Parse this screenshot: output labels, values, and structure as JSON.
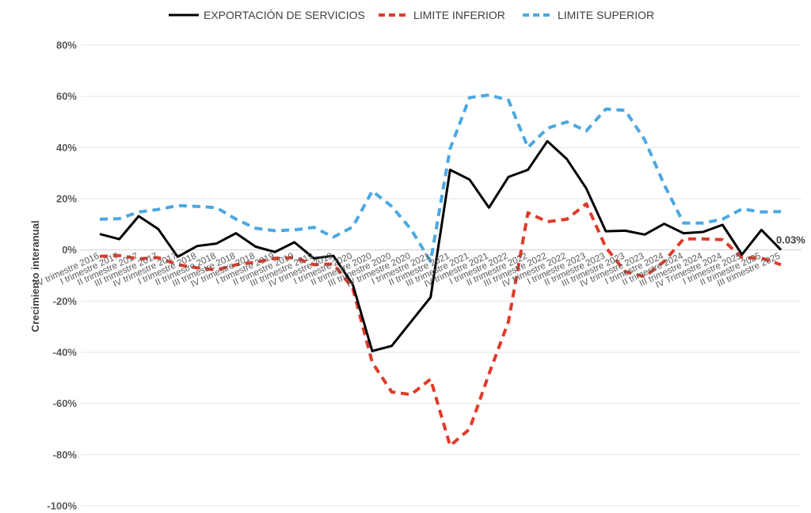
{
  "chart_data": {
    "type": "line",
    "title": "",
    "xlabel": "",
    "ylabel": "Crecimiento interanual",
    "ylim": [
      -100,
      80
    ],
    "y_ticks": [
      {
        "value": 80,
        "label": "80%"
      },
      {
        "value": 60,
        "label": "60%"
      },
      {
        "value": 40,
        "label": "40%"
      },
      {
        "value": 20,
        "label": "20%"
      },
      {
        "value": 0,
        "label": "0%"
      },
      {
        "value": -20,
        "label": "-20%"
      },
      {
        "value": -40,
        "label": "-40%"
      },
      {
        "value": -60,
        "label": "-60%"
      },
      {
        "value": -80,
        "label": "-80%"
      },
      {
        "value": -100,
        "label": "-100%"
      }
    ],
    "grid": true,
    "legend_position": "top",
    "categories": [
      "IV trimestre 2016",
      "I trimestre 2017",
      "II trimestre 2017",
      "III trimestre 2017",
      "IV trimestre 2017",
      "I trimestre 2018",
      "II trimestre 2018",
      "III trimestre 2018",
      "IV trimestre 2018",
      "I trimestre 2019",
      "II trimestre 2019",
      "III trimestre 2019",
      "IV trimestre 2019",
      "I trimestre 2020",
      "II trimestre 2020",
      "III trimestre 2020",
      "IV trimestre 2020",
      "I trimestre 2021",
      "II trimestre 2021",
      "III trimestre 2021",
      "IV trimestre 2021",
      "I trimestre 2022",
      "II trimestre 2022",
      "III trimestre 2022",
      "IV trimestre 2022",
      "I trimestre 2023",
      "II trimestre 2023",
      "III trimestre 2023",
      "IV trimestre 2023",
      "I trimestre 2024",
      "II trimestre 2024",
      "III trimestre 2024",
      "IV Trimestre 2024",
      "I trimestre 2025",
      "II trimestre 2025",
      "III trimestre 2025"
    ],
    "series": [
      {
        "name": "EXPORTACIÓN DE SERVICIOS",
        "color": "#000000",
        "dash": "solid",
        "values": [
          6.2,
          4.2,
          13.2,
          8.2,
          -2.7,
          1.5,
          2.5,
          6.5,
          1.3,
          -0.8,
          3.0,
          -3.3,
          -2.3,
          -13.5,
          -39.5,
          -37.5,
          -28.0,
          -18.5,
          31.3,
          27.5,
          16.5,
          28.5,
          31.3,
          42.5,
          35.5,
          24.0,
          7.3,
          7.5,
          6.0,
          10.2,
          6.5,
          7.0,
          9.8,
          -1.8,
          7.8,
          0.03
        ]
      },
      {
        "name": "LIMITE INFERIOR",
        "color": "#e03a2a",
        "dash": "dashed",
        "values": [
          -2.5,
          -2.2,
          -3.5,
          -3.0,
          -5.8,
          -7.0,
          -7.8,
          -5.8,
          -4.8,
          -3.3,
          -3.0,
          -5.8,
          -5.5,
          -15.0,
          -44.0,
          -55.5,
          -56.5,
          -50.5,
          -76.5,
          -70.0,
          -48.5,
          -28.0,
          14.5,
          11.0,
          12.0,
          18.0,
          1.0,
          -8.5,
          -10.5,
          -4.5,
          4.3,
          4.3,
          4.0,
          -3.0,
          -3.2,
          -5.8
        ]
      },
      {
        "name": "LIMITE SUPERIOR",
        "color": "#4ba8e2",
        "dash": "dashed",
        "values": [
          12.0,
          12.2,
          14.8,
          15.8,
          17.3,
          17.0,
          16.5,
          12.0,
          8.5,
          7.5,
          7.8,
          8.8,
          5.0,
          9.0,
          23.0,
          17.0,
          8.0,
          -4.5,
          39.5,
          59.5,
          60.5,
          58.5,
          40.0,
          47.5,
          50.0,
          46.5,
          55.0,
          54.5,
          43.0,
          25.5,
          10.5,
          10.5,
          12.0,
          16.0,
          14.8,
          15.0
        ]
      }
    ],
    "annotations": [
      {
        "series": "EXPORTACIÓN DE SERVICIOS",
        "category": "III trimestre 2025",
        "text": "0.03%"
      }
    ]
  }
}
